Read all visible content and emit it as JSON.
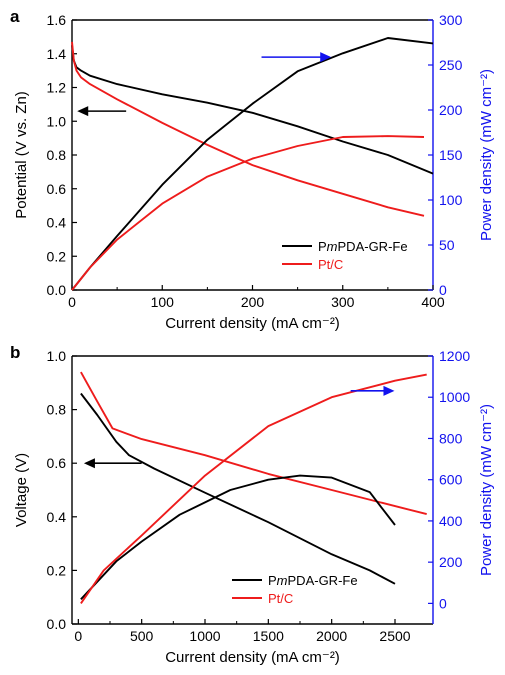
{
  "colors": {
    "black": "#000000",
    "red": "#ee1c1c",
    "blue": "#1212ee"
  },
  "chart_data": [
    {
      "type": "line",
      "panel_label": "a",
      "xlabel": "Current density (mA cm⁻²)",
      "ylabel_left": "Potential (V vs. Zn)",
      "ylabel_right": "Power density (mW cm⁻²)",
      "xlim": [
        0,
        400
      ],
      "ylim_left": [
        0,
        1.6
      ],
      "ylim_right": [
        0,
        300
      ],
      "x_ticks": [
        0,
        100,
        200,
        300,
        400
      ],
      "y_left_ticks": [
        "0.0",
        "0.2",
        "0.4",
        "0.6",
        "0.8",
        "1.0",
        "1.2",
        "1.4",
        "1.6"
      ],
      "y_right_ticks": [
        0,
        50,
        100,
        150,
        200,
        250,
        300
      ],
      "legend": {
        "position": "bottom-right",
        "entries": [
          "PmPDA-GR-Fe",
          "Pt/C"
        ]
      },
      "series": [
        {
          "name": "PmPDA-GR-Fe",
          "color": "black",
          "axis": "left",
          "kind": "polarization",
          "x": [
            0,
            2,
            5,
            10,
            20,
            50,
            100,
            150,
            200,
            250,
            300,
            350,
            400
          ],
          "y": [
            1.45,
            1.36,
            1.32,
            1.3,
            1.27,
            1.22,
            1.16,
            1.11,
            1.05,
            0.97,
            0.88,
            0.8,
            0.69
          ]
        },
        {
          "name": "Pt/C",
          "color": "red",
          "axis": "left",
          "kind": "polarization",
          "x": [
            0,
            2,
            5,
            10,
            20,
            50,
            100,
            150,
            200,
            250,
            300,
            350,
            390
          ],
          "y": [
            1.47,
            1.36,
            1.3,
            1.26,
            1.22,
            1.13,
            0.99,
            0.86,
            0.74,
            0.65,
            0.57,
            0.49,
            0.44
          ]
        },
        {
          "name": "PmPDA-GR-Fe",
          "color": "black",
          "axis": "right",
          "kind": "power",
          "x": [
            0,
            20,
            50,
            100,
            150,
            200,
            250,
            300,
            350,
            400
          ],
          "y": [
            0,
            25,
            60,
            117,
            167,
            207,
            243,
            263,
            280,
            274
          ]
        },
        {
          "name": "Pt/C",
          "color": "red",
          "axis": "right",
          "kind": "power",
          "x": [
            0,
            20,
            50,
            100,
            150,
            200,
            250,
            300,
            350,
            390
          ],
          "y": [
            0,
            25,
            56,
            96,
            126,
            146,
            160,
            170,
            171,
            170
          ]
        }
      ],
      "arrows": [
        {
          "direction": "left",
          "x_from": 60,
          "x_to": 8,
          "y": 1.06,
          "axis": "left"
        },
        {
          "direction": "right",
          "x_from": 210,
          "x_to": 285,
          "y": 1.38,
          "axis": "left"
        }
      ]
    },
    {
      "type": "line",
      "panel_label": "b",
      "xlabel": "Current density (mA cm⁻²)",
      "ylabel_left": "Voltage (V)",
      "ylabel_right": "Power density (mW cm⁻²)",
      "xlim": [
        -50,
        2800
      ],
      "ylim_left": [
        0,
        1.0
      ],
      "ylim_right": [
        -100,
        1200
      ],
      "x_ticks": [
        0,
        500,
        1000,
        1500,
        2000,
        2500
      ],
      "y_left_ticks": [
        "0.0",
        "0.2",
        "0.4",
        "0.6",
        "0.8",
        "1.0"
      ],
      "y_right_ticks": [
        0,
        200,
        400,
        600,
        800,
        1000,
        1200
      ],
      "legend": {
        "position": "bottom-right",
        "entries": [
          "PmPDA-GR-Fe",
          "Pt/C"
        ]
      },
      "series": [
        {
          "name": "PmPDA-GR-Fe",
          "color": "black",
          "axis": "left",
          "kind": "polarization",
          "x": [
            20,
            150,
            300,
            400,
            600,
            1000,
            1500,
            2000,
            2300,
            2500
          ],
          "y": [
            0.86,
            0.78,
            0.68,
            0.63,
            0.58,
            0.49,
            0.38,
            0.26,
            0.2,
            0.15
          ]
        },
        {
          "name": "Pt/C",
          "color": "red",
          "axis": "left",
          "kind": "polarization",
          "x": [
            20,
            150,
            270,
            500,
            1000,
            1500,
            2000,
            2500,
            2750
          ],
          "y": [
            0.94,
            0.83,
            0.73,
            0.69,
            0.63,
            0.56,
            0.5,
            0.44,
            0.41
          ]
        },
        {
          "name": "PmPDA-GR-Fe",
          "color": "black",
          "axis": "right",
          "kind": "power",
          "x": [
            20,
            300,
            500,
            800,
            1000,
            1200,
            1500,
            1750,
            2000,
            2300,
            2400,
            2500
          ],
          "y": [
            20,
            204,
            300,
            430,
            490,
            550,
            600,
            620,
            610,
            540,
            460,
            380
          ]
        },
        {
          "name": "Pt/C",
          "color": "red",
          "axis": "right",
          "kind": "power",
          "x": [
            20,
            200,
            500,
            1000,
            1500,
            2000,
            2500,
            2750
          ],
          "y": [
            0,
            160,
            330,
            620,
            860,
            1000,
            1080,
            1110
          ]
        }
      ],
      "arrows": [
        {
          "direction": "left",
          "x_from": 500,
          "x_to": 60,
          "y": 0.6,
          "axis": "left"
        },
        {
          "direction": "right",
          "x_from": 2150,
          "x_to": 2480,
          "y": 0.87,
          "axis": "left"
        }
      ]
    }
  ]
}
